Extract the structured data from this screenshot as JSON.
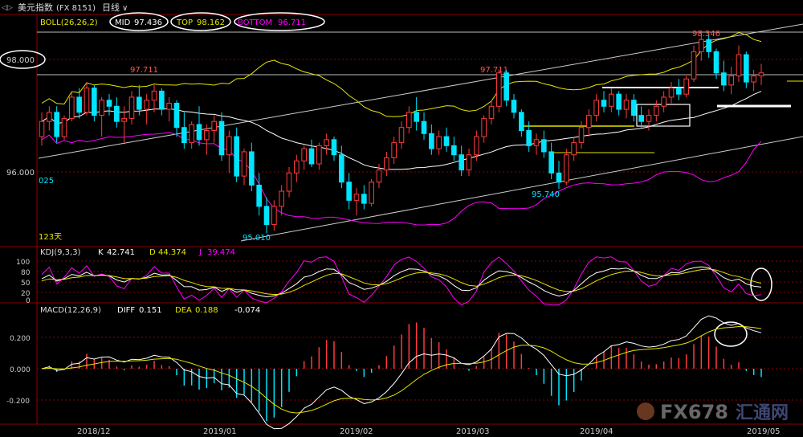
{
  "header": {
    "title": "美元指数",
    "code": "(FX 8151)",
    "period": "日线",
    "dropdown_glyph": "∨",
    "nav_glyph": "◁▷"
  },
  "main_indicator": {
    "name": "BOLL(26,26,2)",
    "mid_label": "MID",
    "mid": "97.436",
    "top_label": "TOP",
    "top": "98.162",
    "bottom_label": "BOTTOM",
    "bottom": "96.711"
  },
  "price_axis": {
    "labels": [
      "98.000",
      "96.000"
    ]
  },
  "price_annotations": {
    "high1": "97.711",
    "high2": "97.711",
    "high3": "98.346",
    "low1": "95.010",
    "low2": "95.740",
    "left_value": "025",
    "days": "123天"
  },
  "kdj": {
    "name": "KDJ(9,3,3)",
    "k_label": "K",
    "k": "42.741",
    "d_label": "D",
    "d": "44.374",
    "j_label": "J",
    "j": "39.474",
    "axis": [
      "100",
      "80",
      "50",
      "20",
      "0"
    ]
  },
  "macd": {
    "name": "MACD(12,26,9)",
    "diff_label": "DIFF",
    "diff": "0.151",
    "dea_label": "DEA",
    "dea": "0.188",
    "macd_value": "-0.074",
    "axis": [
      "0.200",
      "0.000",
      "-0.200"
    ]
  },
  "x_axis": {
    "labels": [
      "2018/12",
      "2019/01",
      "2019/02",
      "2019/03",
      "2019/04",
      "2019/05"
    ]
  },
  "watermark": {
    "brand": "FX678",
    "cn": "汇通网"
  },
  "colors": {
    "background": "#000000",
    "up": "#ff3b3b",
    "down": "#00e5ff",
    "mid": "#ffffff",
    "top": "#e6e600",
    "bottom": "#ff00ff",
    "grid": "#8b0000",
    "axis_text": "#cccccc"
  },
  "chart_data": {
    "type": "candlestick",
    "price_ylim": [
      94.8,
      98.6
    ],
    "candles_ohlc": [
      [
        96.6,
        97.0,
        96.45,
        96.85
      ],
      [
        96.85,
        97.1,
        96.7,
        97.0
      ],
      [
        97.0,
        97.1,
        96.5,
        96.6
      ],
      [
        96.6,
        96.95,
        96.55,
        96.9
      ],
      [
        96.9,
        97.35,
        96.85,
        97.25
      ],
      [
        97.25,
        97.4,
        96.9,
        97.0
      ],
      [
        97.0,
        97.5,
        96.95,
        97.4
      ],
      [
        97.4,
        97.45,
        96.85,
        96.95
      ],
      [
        96.95,
        97.25,
        96.6,
        97.2
      ],
      [
        97.2,
        97.3,
        96.95,
        97.1
      ],
      [
        97.1,
        97.25,
        96.75,
        96.85
      ],
      [
        96.85,
        97.1,
        96.5,
        96.9
      ],
      [
        96.9,
        97.35,
        96.8,
        97.25
      ],
      [
        97.25,
        97.45,
        96.95,
        97.05
      ],
      [
        97.05,
        97.3,
        96.8,
        97.2
      ],
      [
        97.2,
        97.45,
        97.0,
        97.35
      ],
      [
        97.35,
        97.4,
        96.95,
        97.05
      ],
      [
        97.05,
        97.25,
        96.85,
        97.15
      ],
      [
        97.15,
        97.2,
        96.6,
        96.75
      ],
      [
        96.75,
        97.0,
        96.4,
        96.5
      ],
      [
        96.5,
        96.85,
        96.4,
        96.8
      ],
      [
        96.8,
        97.1,
        96.45,
        96.55
      ],
      [
        96.55,
        96.8,
        96.3,
        96.7
      ],
      [
        96.7,
        96.95,
        96.5,
        96.85
      ],
      [
        96.85,
        97.0,
        96.2,
        96.3
      ],
      [
        96.3,
        96.7,
        96.0,
        96.6
      ],
      [
        96.6,
        96.75,
        95.85,
        95.95
      ],
      [
        95.95,
        96.4,
        95.8,
        96.35
      ],
      [
        96.35,
        96.5,
        95.7,
        95.8
      ],
      [
        95.8,
        96.0,
        95.3,
        95.45
      ],
      [
        95.45,
        95.6,
        95.01,
        95.15
      ],
      [
        95.15,
        95.55,
        95.05,
        95.45
      ],
      [
        95.45,
        95.8,
        95.3,
        95.7
      ],
      [
        95.7,
        96.1,
        95.6,
        96.0
      ],
      [
        96.0,
        96.3,
        95.85,
        96.2
      ],
      [
        96.2,
        96.45,
        96.05,
        96.4
      ],
      [
        96.4,
        96.55,
        96.1,
        96.15
      ],
      [
        96.15,
        96.5,
        96.05,
        96.45
      ],
      [
        96.45,
        96.65,
        96.3,
        96.55
      ],
      [
        96.55,
        96.6,
        96.2,
        96.3
      ],
      [
        96.3,
        96.45,
        95.75,
        95.85
      ],
      [
        95.85,
        96.0,
        95.4,
        95.55
      ],
      [
        95.55,
        95.75,
        95.3,
        95.65
      ],
      [
        95.65,
        95.8,
        95.4,
        95.5
      ],
      [
        95.5,
        95.9,
        95.45,
        95.85
      ],
      [
        95.85,
        96.15,
        95.75,
        96.05
      ],
      [
        96.05,
        96.35,
        95.95,
        96.25
      ],
      [
        96.25,
        96.6,
        96.15,
        96.5
      ],
      [
        96.5,
        96.85,
        96.4,
        96.75
      ],
      [
        96.75,
        97.1,
        96.65,
        97.0
      ],
      [
        97.0,
        97.25,
        96.7,
        96.85
      ],
      [
        96.85,
        97.0,
        96.55,
        96.65
      ],
      [
        96.65,
        96.8,
        96.3,
        96.4
      ],
      [
        96.4,
        96.7,
        96.3,
        96.6
      ],
      [
        96.6,
        96.75,
        96.35,
        96.45
      ],
      [
        96.45,
        96.6,
        96.2,
        96.3
      ],
      [
        96.3,
        96.45,
        95.95,
        96.05
      ],
      [
        96.05,
        96.4,
        95.95,
        96.3
      ],
      [
        96.3,
        96.7,
        96.2,
        96.6
      ],
      [
        96.6,
        96.95,
        96.5,
        96.9
      ],
      [
        96.9,
        97.2,
        96.8,
        97.1
      ],
      [
        97.1,
        97.71,
        97.0,
        97.65
      ],
      [
        97.65,
        97.7,
        97.1,
        97.2
      ],
      [
        97.2,
        97.3,
        96.9,
        97.0
      ],
      [
        97.0,
        97.05,
        96.6,
        96.7
      ],
      [
        96.7,
        96.85,
        96.35,
        96.45
      ],
      [
        96.45,
        96.65,
        96.3,
        96.55
      ],
      [
        96.55,
        96.7,
        96.25,
        96.35
      ],
      [
        96.35,
        96.5,
        95.9,
        96.0
      ],
      [
        96.0,
        96.2,
        95.74,
        95.85
      ],
      [
        95.85,
        96.4,
        95.8,
        96.3
      ],
      [
        96.3,
        96.6,
        96.2,
        96.5
      ],
      [
        96.5,
        96.85,
        96.4,
        96.75
      ],
      [
        96.75,
        97.05,
        96.6,
        96.95
      ],
      [
        96.95,
        97.3,
        96.85,
        97.2
      ],
      [
        97.2,
        97.35,
        97.0,
        97.1
      ],
      [
        97.1,
        97.4,
        97.0,
        97.3
      ],
      [
        97.3,
        97.35,
        96.95,
        97.05
      ],
      [
        97.05,
        97.3,
        96.9,
        97.2
      ],
      [
        97.2,
        97.3,
        96.85,
        96.95
      ],
      [
        96.95,
        97.1,
        96.75,
        96.85
      ],
      [
        96.85,
        97.05,
        96.7,
        96.95
      ],
      [
        96.95,
        97.2,
        96.85,
        97.1
      ],
      [
        97.1,
        97.35,
        97.0,
        97.25
      ],
      [
        97.25,
        97.5,
        97.15,
        97.4
      ],
      [
        97.4,
        97.55,
        97.2,
        97.3
      ],
      [
        97.3,
        97.6,
        97.25,
        97.55
      ],
      [
        97.55,
        98.1,
        97.5,
        98.0
      ],
      [
        98.0,
        98.346,
        97.85,
        98.2
      ],
      [
        98.2,
        98.3,
        97.9,
        98.0
      ],
      [
        98.0,
        98.05,
        97.55,
        97.65
      ],
      [
        97.65,
        97.85,
        97.35,
        97.45
      ],
      [
        97.45,
        97.75,
        97.3,
        97.6
      ],
      [
        97.6,
        98.1,
        97.5,
        97.95
      ],
      [
        97.95,
        98.0,
        97.4,
        97.5
      ],
      [
        97.5,
        97.7,
        97.35,
        97.6
      ],
      [
        97.6,
        97.8,
        97.45,
        97.65
      ]
    ],
    "kdj_ylim": [
      0,
      100
    ],
    "macd_ylim": [
      -0.3,
      0.3
    ]
  }
}
